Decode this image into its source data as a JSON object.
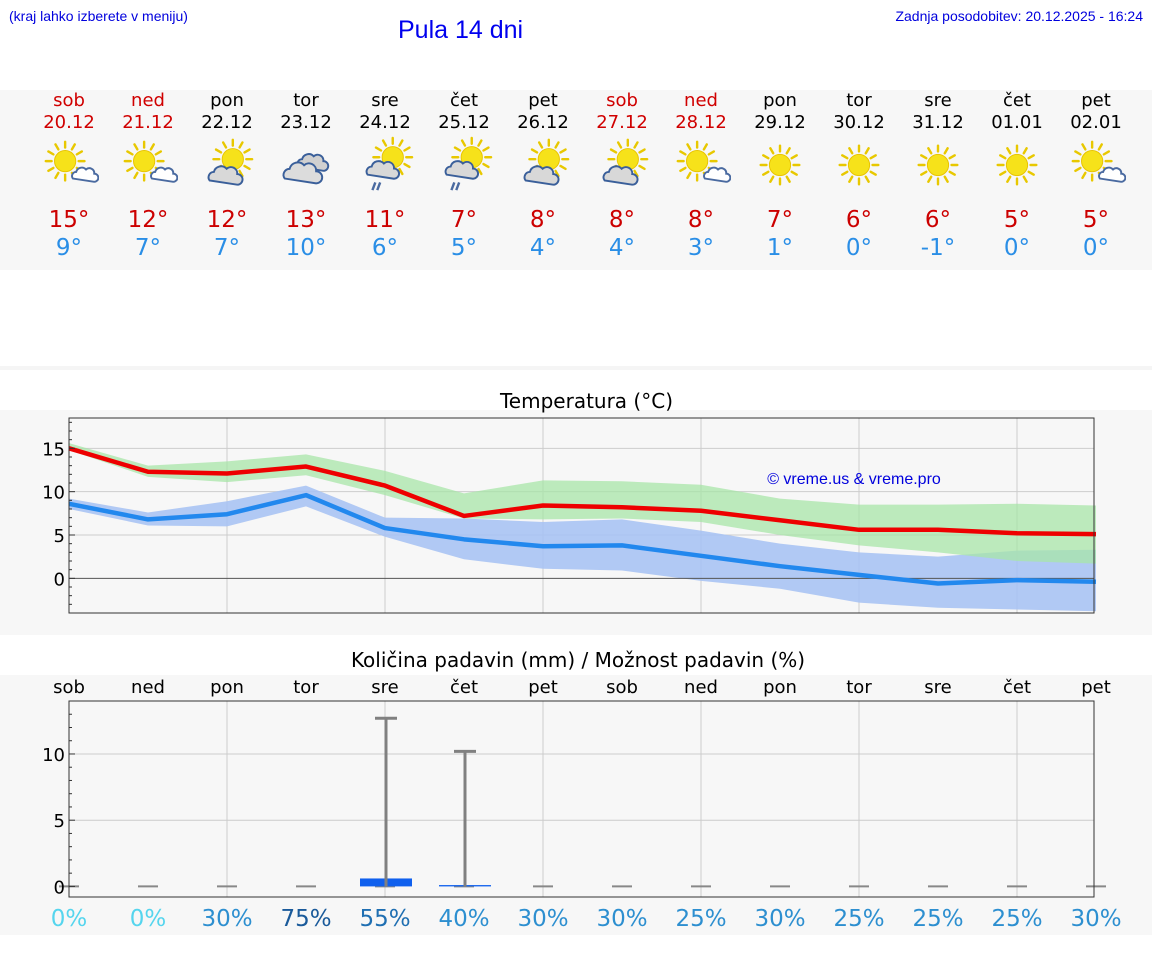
{
  "header": {
    "hint": "(kraj lahko izberete v meniju)",
    "title": "Pula 14 dni",
    "updated": "Zadnja posodobitev: 20.12.2025 - 16:24"
  },
  "days": [
    {
      "name": "sob",
      "date": "20.12",
      "weekend": true,
      "icon": "sun-cloud",
      "tmax": "15°",
      "tmin": "9°"
    },
    {
      "name": "ned",
      "date": "21.12",
      "weekend": true,
      "icon": "sun-cloud",
      "tmax": "12°",
      "tmin": "7°"
    },
    {
      "name": "pon",
      "date": "22.12",
      "weekend": false,
      "icon": "cloud-sun",
      "tmax": "12°",
      "tmin": "7°"
    },
    {
      "name": "tor",
      "date": "23.12",
      "weekend": false,
      "icon": "cloudy",
      "tmax": "13°",
      "tmin": "10°"
    },
    {
      "name": "sre",
      "date": "24.12",
      "weekend": false,
      "icon": "rain",
      "tmax": "11°",
      "tmin": "6°"
    },
    {
      "name": "čet",
      "date": "25.12",
      "weekend": false,
      "icon": "rain",
      "tmax": "7°",
      "tmin": "5°"
    },
    {
      "name": "pet",
      "date": "26.12",
      "weekend": false,
      "icon": "cloud-sun",
      "tmax": "8°",
      "tmin": "4°"
    },
    {
      "name": "sob",
      "date": "27.12",
      "weekend": true,
      "icon": "cloud-sun",
      "tmax": "8°",
      "tmin": "4°"
    },
    {
      "name": "ned",
      "date": "28.12",
      "weekend": true,
      "icon": "sun-cloud",
      "tmax": "8°",
      "tmin": "3°"
    },
    {
      "name": "pon",
      "date": "29.12",
      "weekend": false,
      "icon": "sun",
      "tmax": "7°",
      "tmin": "1°"
    },
    {
      "name": "tor",
      "date": "30.12",
      "weekend": false,
      "icon": "sun",
      "tmax": "6°",
      "tmin": "0°"
    },
    {
      "name": "sre",
      "date": "31.12",
      "weekend": false,
      "icon": "sun",
      "tmax": "6°",
      "tmin": "-1°"
    },
    {
      "name": "čet",
      "date": "01.01",
      "weekend": false,
      "icon": "sun",
      "tmax": "5°",
      "tmin": "0°"
    },
    {
      "name": "pet",
      "date": "02.01",
      "weekend": false,
      "icon": "sun-cloud",
      "tmax": "5°",
      "tmin": "0°"
    }
  ],
  "colors": {
    "max_line": "#ee0000",
    "min_line": "#2288ee",
    "max_band": "#a8e6a8",
    "min_band": "#a9c3f3",
    "overlap_band": "#86c8a4",
    "weekend": "#d00000",
    "precip_bar": "#1060ee",
    "whisker": "#808080",
    "watermark": "#0000dd"
  },
  "chart_data": [
    {
      "type": "line",
      "title": "Temperatura (°C)",
      "watermark": "© vreme.us & vreme.pro",
      "ylim": [
        -4,
        18.5
      ],
      "yticks": [
        0,
        5,
        10,
        15
      ],
      "ytick_labels": [
        "0",
        "5",
        "10",
        "15"
      ],
      "grid": true,
      "series": [
        {
          "name": "max",
          "values": [
            15.0,
            12.3,
            12.1,
            12.9,
            10.7,
            7.2,
            8.4,
            8.2,
            7.8,
            6.7,
            5.6,
            5.6,
            5.2,
            5.1
          ]
        },
        {
          "name": "min",
          "values": [
            8.6,
            6.8,
            7.4,
            9.6,
            5.8,
            4.5,
            3.7,
            3.8,
            2.6,
            1.4,
            0.4,
            -0.6,
            -0.2,
            -0.4
          ]
        }
      ],
      "bands": [
        {
          "name": "max_range",
          "low": [
            14.8,
            11.7,
            11.1,
            11.9,
            9.6,
            6.9,
            6.8,
            6.9,
            6.5,
            5.0,
            3.8,
            3.0,
            2.0,
            1.7
          ],
          "high": [
            15.6,
            13.0,
            13.5,
            14.3,
            12.4,
            9.8,
            11.3,
            11.2,
            10.8,
            9.2,
            8.5,
            8.5,
            8.6,
            8.4
          ]
        },
        {
          "name": "min_range",
          "low": [
            8.0,
            6.1,
            6.0,
            8.3,
            4.8,
            2.2,
            1.1,
            0.9,
            -0.3,
            -1.2,
            -2.8,
            -3.4,
            -3.6,
            -3.8
          ],
          "high": [
            9.2,
            7.6,
            8.9,
            10.7,
            7.0,
            6.9,
            6.5,
            6.8,
            5.5,
            4.0,
            3.0,
            2.5,
            3.2,
            3.3
          ]
        }
      ]
    },
    {
      "type": "bar",
      "title": "Količina padavin (mm) / Možnost padavin (%)",
      "categories": [
        "sob",
        "ned",
        "pon",
        "tor",
        "sre",
        "čet",
        "pet",
        "sob",
        "ned",
        "pon",
        "tor",
        "sre",
        "čet",
        "pet"
      ],
      "ylim": [
        -0.8,
        14
      ],
      "yticks": [
        0,
        5,
        10
      ],
      "ytick_labels": [
        "0",
        "5",
        "10"
      ],
      "precip_mm": [
        0,
        0,
        0,
        0,
        0.6,
        0.1,
        0,
        0,
        0,
        0,
        0,
        0,
        0,
        0
      ],
      "precip_max_mm": [
        0,
        0,
        0,
        0,
        12.7,
        10.2,
        0,
        0,
        0,
        0,
        0,
        0,
        0,
        0
      ],
      "probability": [
        "0%",
        "0%",
        "30%",
        "75%",
        "55%",
        "40%",
        "30%",
        "30%",
        "25%",
        "30%",
        "25%",
        "25%",
        "25%",
        "30%"
      ],
      "probability_colors": [
        "#55d5ee",
        "#55d5ee",
        "#2d8fd0",
        "#1a5a9a",
        "#1f6fb2",
        "#2d8fd0",
        "#2d8fd0",
        "#2d8fd0",
        "#2d8fd0",
        "#2d8fd0",
        "#2d8fd0",
        "#2d8fd0",
        "#2d8fd0",
        "#2d8fd0"
      ]
    }
  ]
}
